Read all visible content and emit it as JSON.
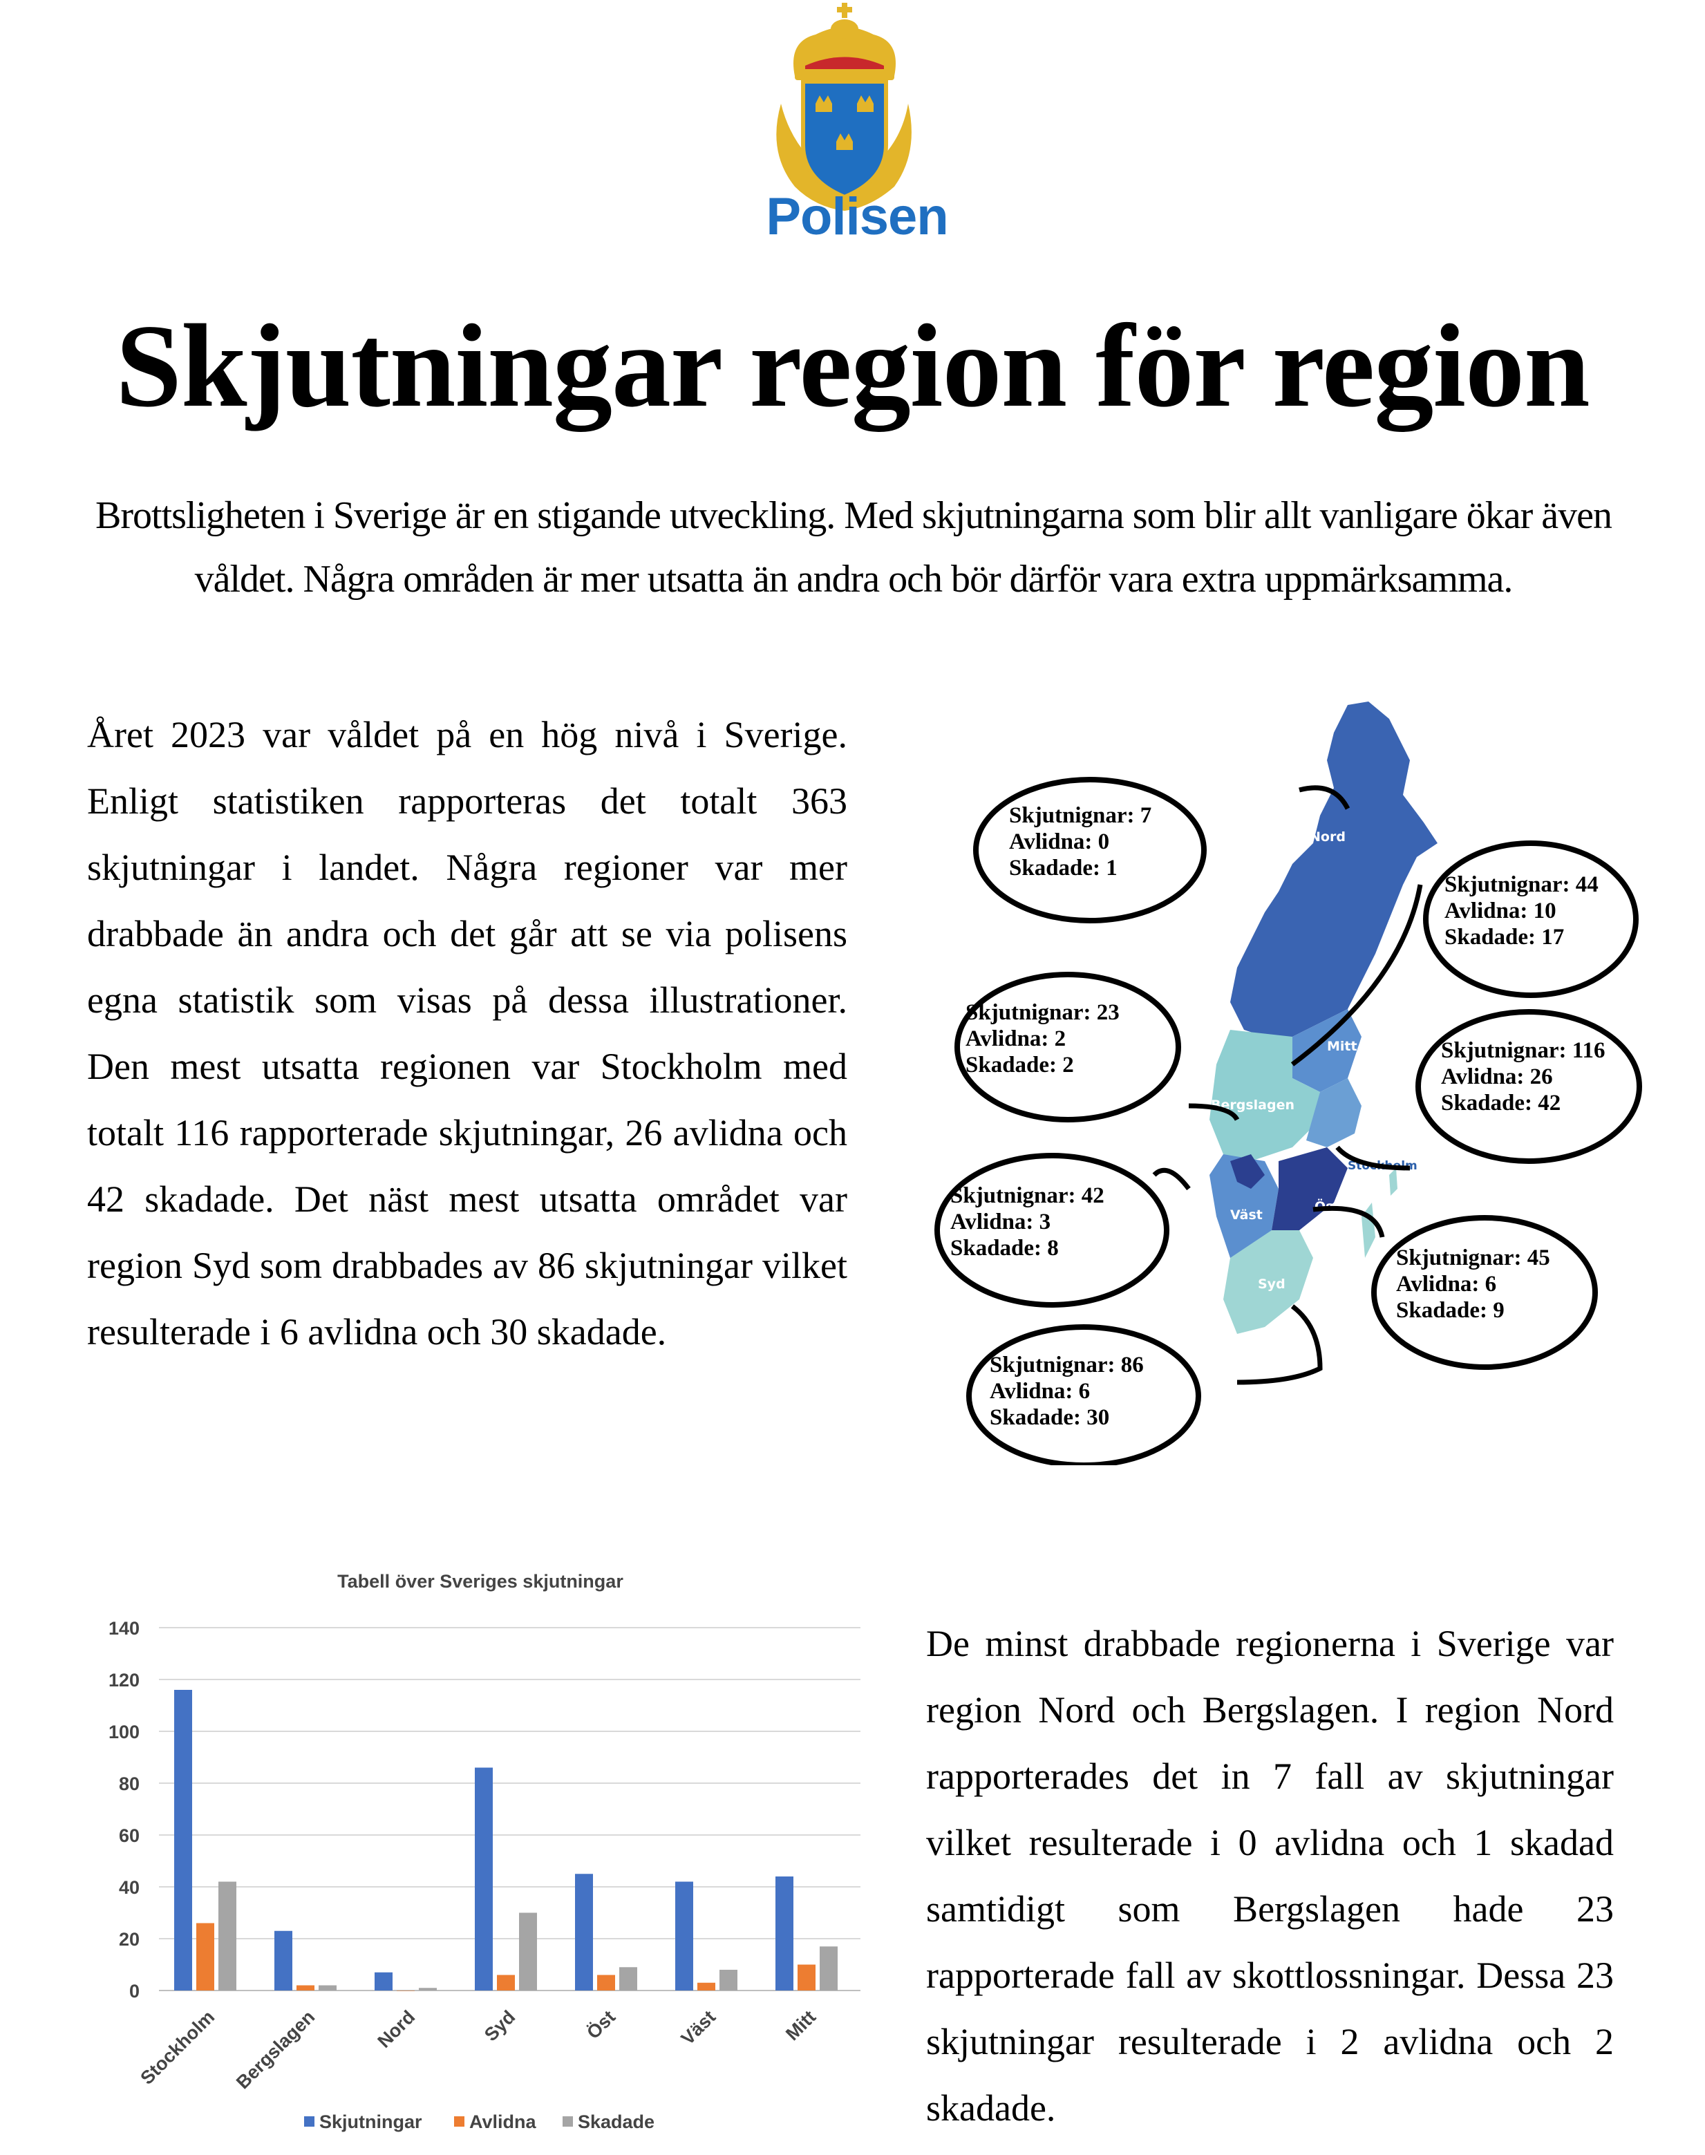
{
  "logo": {
    "text": "Polisen",
    "colors": {
      "blue": "#1f6fc1",
      "gold": "#e3b52a",
      "red": "#c8282c"
    }
  },
  "title": "Skjutningar region för region",
  "intro": "Brottsligheten i Sverige är en stigande utveckling. Med skjutningarna som blir allt vanligare ökar även våldet. Några områden är mer utsatta än andra och bör därför vara extra uppmärksamma.",
  "paragraph1": "Året 2023 var våldet på en hög nivå i Sverige. Enligt statistiken rapporteras det totalt 363 skjutningar i landet. Några regioner var mer drabbade än andra och det går att se via polisens egna statistik som visas på dessa illustrationer. Den mest utsatta regionen var Stockholm med totalt 116 rapporterade skjutningar, 26 avlidna och 42 skadade. Det näst mest utsatta området var region Syd som drabbades av 86 skjutningar vilket resulterade i 6 avlidna och 30 skadade.",
  "paragraph2": "De minst drabbade regionerna i Sverige var region Nord och Bergslagen. I region Nord rapporterades det in 7 fall av skjutningar vilket resulterade i 0 avlidna och 1 skadad samtidigt som Bergslagen hade 23 rapporterade fall av skottlossningar. Dessa 23 skjutningar resulterade i 2 avlidna och 2 skadade.",
  "map": {
    "region_labels": {
      "nord": "Nord",
      "mitt": "Mitt",
      "bergslagen": "Bergslagen",
      "stockholm": "Stockholm",
      "vast": "Väst",
      "ost": "Öst",
      "syd": "Syd"
    },
    "bubbles": {
      "nord": [
        "Skjutnignar: 7",
        "Avlidna: 0",
        "Skadade: 1"
      ],
      "mitt": [
        "Skjutnignar: 44",
        "Avlidna: 10",
        "Skadade: 17"
      ],
      "bergslagen": [
        "Skjutnignar: 23",
        "Avlidna: 2",
        "Skadade: 2"
      ],
      "stockholm": [
        "Skjutnignar: 116",
        "Avlidna: 26",
        "Skadade: 42"
      ],
      "vast": [
        "Skjutnignar: 42",
        "Avlidna: 3",
        "Skadade: 8"
      ],
      "ost": [
        "Skjutnignar: 45",
        "Avlidna: 6",
        "Skadade: 9"
      ],
      "syd": [
        "Skjutnignar: 86",
        "Avlidna: 6",
        "Skadade: 30"
      ]
    },
    "colors": {
      "dark": "#2b3f8f",
      "blue": "#3a64b2",
      "mid": "#5b8fcf",
      "light": "#8fcfd1",
      "lighter": "#9fd6d4"
    }
  },
  "chart_data": {
    "type": "bar",
    "title": "Tabell över Sveriges skjutningar",
    "categories": [
      "Stockholm",
      "Bergslagen",
      "Nord",
      "Syd",
      "Öst",
      "Väst",
      "Mitt"
    ],
    "series": [
      {
        "name": "Skjutningar",
        "color": "#4472c4",
        "values": [
          116,
          23,
          7,
          86,
          45,
          42,
          44
        ]
      },
      {
        "name": "Avlidna",
        "color": "#ed7d31",
        "values": [
          26,
          2,
          0,
          6,
          6,
          3,
          10
        ]
      },
      {
        "name": "Skadade",
        "color": "#a5a5a5",
        "values": [
          42,
          2,
          1,
          30,
          9,
          8,
          17
        ]
      }
    ],
    "ylim": [
      0,
      140
    ],
    "yticks": [
      0,
      20,
      40,
      60,
      80,
      100,
      120,
      140
    ],
    "grid": true,
    "legend": "bottom"
  }
}
